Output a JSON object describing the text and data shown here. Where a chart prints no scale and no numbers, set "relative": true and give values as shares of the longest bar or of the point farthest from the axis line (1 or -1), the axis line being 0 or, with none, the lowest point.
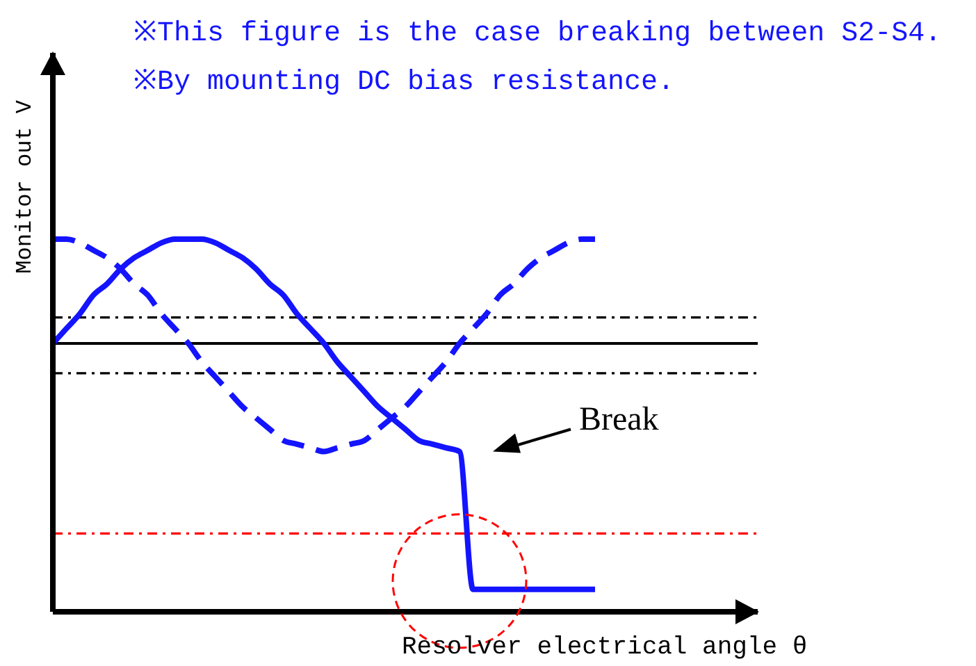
{
  "chart_data": {
    "type": "line",
    "title": "※This figure is the case breaking between S2-S4.",
    "subtitle": "※By mounting DC bias resistance.",
    "xlabel": "Resolver electrical angle θ",
    "ylabel": "Monitor out V",
    "annotations": [
      "Break"
    ],
    "relative": true,
    "marker": "none",
    "categories": [
      null,
      null,
      null,
      null,
      null,
      null,
      null,
      null,
      null,
      null,
      null,
      null,
      null,
      null,
      null,
      null,
      null,
      null,
      null,
      null,
      null,
      null,
      null,
      null,
      null,
      null,
      null,
      null,
      null,
      null,
      null,
      null,
      null,
      null,
      null,
      null,
      null,
      null,
      null,
      null,
      null,
      null,
      null,
      null,
      null,
      null,
      null,
      null,
      null,
      null,
      null,
      null,
      null
    ],
    "series": [
      {
        "color": "#1414ff",
        "line_style": "solid",
        "values": [
          0.72,
          0.76,
          0.8,
          0.85,
          0.88,
          0.92,
          0.95,
          0.97,
          0.99,
          1.0,
          1.0,
          1.0,
          0.99,
          0.97,
          0.95,
          0.92,
          0.88,
          0.85,
          0.8,
          0.76,
          0.72,
          0.67,
          0.63,
          0.59,
          0.55,
          0.52,
          0.49,
          0.46,
          0.45,
          0.44,
          0.43,
          0.06,
          0.06,
          0.06,
          0.06,
          0.06,
          0.06,
          0.06,
          0.06,
          0.06,
          0.06,
          null,
          null,
          null,
          null,
          null,
          null,
          null,
          null,
          null,
          null,
          null,
          null
        ]
      },
      {
        "color": "#1414ff",
        "line_style": "dashed",
        "values": [
          1.0,
          1.0,
          0.99,
          0.97,
          0.95,
          0.92,
          0.88,
          0.85,
          0.8,
          0.76,
          0.72,
          0.67,
          0.63,
          0.59,
          0.55,
          0.52,
          0.49,
          0.46,
          0.45,
          0.44,
          0.43,
          0.44,
          0.45,
          0.46,
          0.49,
          0.52,
          0.55,
          0.59,
          0.63,
          0.67,
          0.72,
          0.76,
          0.8,
          0.85,
          0.88,
          0.92,
          0.95,
          0.97,
          0.99,
          1.0,
          1.0,
          null,
          null,
          null,
          null,
          null,
          null,
          null,
          null,
          null,
          null,
          null,
          null
        ]
      }
    ],
    "ref_lines": [
      {
        "axis": "y",
        "value": 0.79,
        "color": "#000000",
        "line_style": "dashdot"
      },
      {
        "axis": "y",
        "value": 0.72,
        "color": "#000000",
        "line_style": "solid"
      },
      {
        "axis": "y",
        "value": 0.64,
        "color": "#000000",
        "line_style": "dashdot"
      },
      {
        "axis": "y",
        "value": 0.21,
        "color": "#ff0000",
        "line_style": "dashdot"
      }
    ]
  }
}
